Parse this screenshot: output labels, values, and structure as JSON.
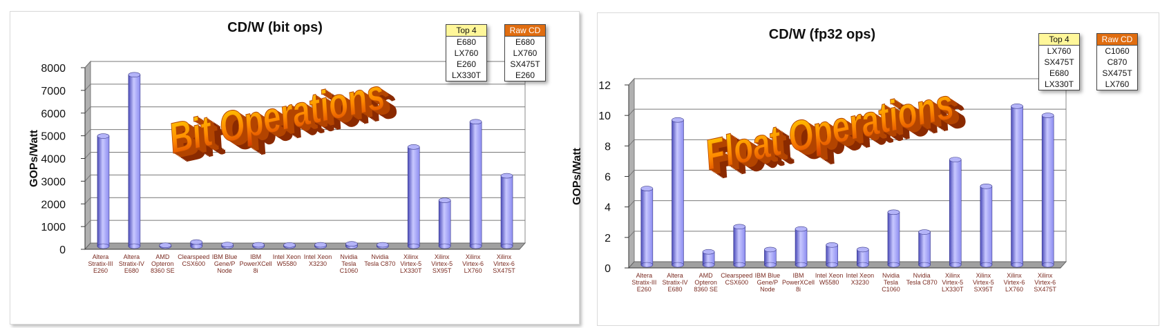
{
  "colors": {
    "bar": "#8c8cf0",
    "bar_dark": "#4a4ab8",
    "bar_light": "#c8c8ff",
    "wall": "#ffffff",
    "floor": "#a0a0a0",
    "grid": "#777777"
  },
  "chart_data": [
    {
      "type": "bar",
      "title": "CD/W (bit ops)",
      "ylabel": "GOPs/Watt",
      "ylim": [
        0,
        8000
      ],
      "yticks": [
        "0",
        "1000",
        "2000",
        "3000",
        "4000",
        "5000",
        "6000",
        "7000",
        "8000"
      ],
      "grid": true,
      "categories": [
        [
          "Altera",
          "Stratix-III",
          "E260"
        ],
        [
          "Altera",
          "Stratix-IV",
          "E680"
        ],
        [
          "AMD",
          "Opteron",
          "8360 SE"
        ],
        [
          "Clearspeed",
          "CSX600"
        ],
        [
          "IBM Blue",
          "Gene/P",
          "Node"
        ],
        [
          "IBM",
          "PowerXCell",
          "8i"
        ],
        [
          "Intel Xeon",
          "W5580"
        ],
        [
          "Intel Xeon",
          "X3230"
        ],
        [
          "Nvidia",
          "Tesla",
          "C1060"
        ],
        [
          "Nvidia",
          "Tesla C870"
        ],
        [
          "Xilinx",
          "Virtex-5",
          "LX330T"
        ],
        [
          "Xilinx",
          "Virtex-5",
          "SX95T"
        ],
        [
          "Xilinx",
          "Virtex-6",
          "LX760"
        ],
        [
          "Xilinx",
          "Virtex-6",
          "SX475T"
        ]
      ],
      "values": [
        4850,
        7550,
        40,
        180,
        70,
        60,
        50,
        60,
        100,
        60,
        4370,
        2020,
        5480,
        3100
      ],
      "watermark": "Bit Operations",
      "legend_top4": {
        "header": "Top 4",
        "items": [
          "E680",
          "LX760",
          "E260",
          "LX330T"
        ]
      },
      "legend_raw": {
        "header": "Raw CD",
        "items": [
          "E680",
          "LX760",
          "SX475T",
          "E260"
        ]
      }
    },
    {
      "type": "bar",
      "title": "CD/W (fp32 ops)",
      "ylabel": "GOPs/Watt",
      "ylim": [
        0,
        12
      ],
      "yticks": [
        "0",
        "2",
        "4",
        "6",
        "8",
        "10",
        "12"
      ],
      "grid": true,
      "categories": [
        [
          "Altera",
          "Stratix-III",
          "E260"
        ],
        [
          "Altera",
          "Stratix-IV",
          "E680"
        ],
        [
          "AMD",
          "Opteron",
          "8360 SE"
        ],
        [
          "Clearspeed",
          "CSX600"
        ],
        [
          "IBM Blue",
          "Gene/P",
          "Node"
        ],
        [
          "IBM",
          "PowerXCell",
          "8i"
        ],
        [
          "Intel Xeon",
          "W5580"
        ],
        [
          "Intel Xeon",
          "X3230"
        ],
        [
          "Nvidia",
          "Tesla",
          "C1060"
        ],
        [
          "Nvidia",
          "Tesla C870"
        ],
        [
          "Xilinx",
          "Virtex-5",
          "LX330T"
        ],
        [
          "Xilinx",
          "Virtex-5",
          "SX95T"
        ],
        [
          "Xilinx",
          "Virtex-6",
          "LX760"
        ],
        [
          "Xilinx",
          "Virtex-6",
          "SX475T"
        ]
      ],
      "values": [
        5.0,
        9.5,
        0.85,
        2.5,
        1.0,
        2.35,
        1.3,
        1.0,
        3.45,
        2.15,
        6.9,
        5.15,
        10.4,
        9.8
      ],
      "watermark": "Float Operations",
      "legend_top4": {
        "header": "Top 4",
        "items": [
          "LX760",
          "SX475T",
          "E680",
          "LX330T"
        ]
      },
      "legend_raw": {
        "header": "Raw CD",
        "items": [
          "C1060",
          "C870",
          "SX475T",
          "LX760"
        ]
      }
    }
  ]
}
